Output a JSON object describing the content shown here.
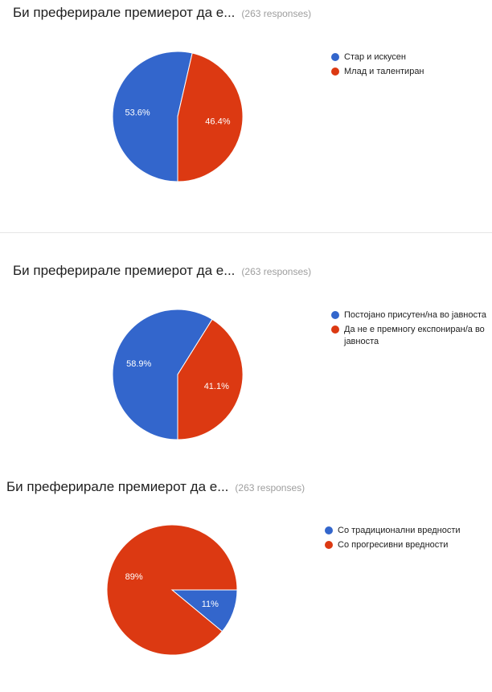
{
  "colors": {
    "blue": "#3366cc",
    "red": "#dc3912"
  },
  "chart_data": [
    {
      "type": "pie",
      "title": "Би преферирале премиерот да е...",
      "subtitle": "(263 responses)",
      "categories": [
        "Стар и искусен",
        "Млад и талентиран"
      ],
      "values": [
        53.6,
        46.4
      ],
      "labels": [
        "53.6%",
        "46.4%"
      ],
      "colors": [
        "#3366cc",
        "#dc3912"
      ],
      "legend_position": "right"
    },
    {
      "type": "pie",
      "title": "Би преферирале премиерот да е...",
      "subtitle": "(263 responses)",
      "categories": [
        "Постојано присутен/на во јавноста",
        "Да не е премногу експониран/а во јавноста"
      ],
      "values": [
        58.9,
        41.1
      ],
      "labels": [
        "58.9%",
        "41.1%"
      ],
      "colors": [
        "#3366cc",
        "#dc3912"
      ],
      "legend_position": "right"
    },
    {
      "type": "pie",
      "title": "Би преферирале премиерот да е...",
      "subtitle": "(263 responses)",
      "categories": [
        "Со традиционални вредности",
        "Со прогресивни вредности"
      ],
      "values": [
        11,
        89
      ],
      "labels": [
        "11%",
        "89%"
      ],
      "colors": [
        "#3366cc",
        "#dc3912"
      ],
      "legend_position": "right"
    }
  ]
}
